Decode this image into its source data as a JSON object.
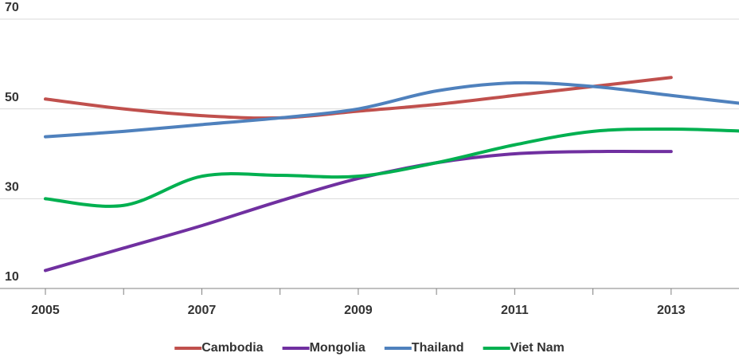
{
  "chart_data": {
    "type": "line",
    "x": [
      2005,
      2006,
      2007,
      2008,
      2009,
      2010,
      2011,
      2012,
      2013,
      2014
    ],
    "xlim": [
      2005,
      2014
    ],
    "xticks": [
      2005,
      2007,
      2009,
      2011,
      2013
    ],
    "xminorticks": [
      2006,
      2008,
      2010,
      2012,
      2014
    ],
    "ylim": [
      10,
      70
    ],
    "yticks": [
      10,
      30,
      50,
      70
    ],
    "grid": true,
    "smooth": true,
    "legend": "bottom",
    "series": [
      {
        "name": "Cambodia",
        "color": "#c0504d",
        "values": [
          52.2,
          50,
          48.5,
          48,
          49.5,
          51,
          53,
          55,
          57,
          null
        ]
      },
      {
        "name": "Mongolia",
        "color": "#7030a0",
        "values": [
          14,
          19,
          24,
          29.5,
          34.5,
          38,
          40,
          40.5,
          40.5,
          null
        ]
      },
      {
        "name": "Thailand",
        "color": "#4f81bd",
        "values": [
          43.8,
          45,
          46.5,
          48,
          50,
          54,
          55.8,
          55,
          53,
          51
        ]
      },
      {
        "name": "Viet Nam",
        "color": "#00b050",
        "values": [
          30,
          28.5,
          35,
          35.2,
          35,
          38,
          42,
          45,
          45.5,
          45
        ]
      }
    ]
  }
}
